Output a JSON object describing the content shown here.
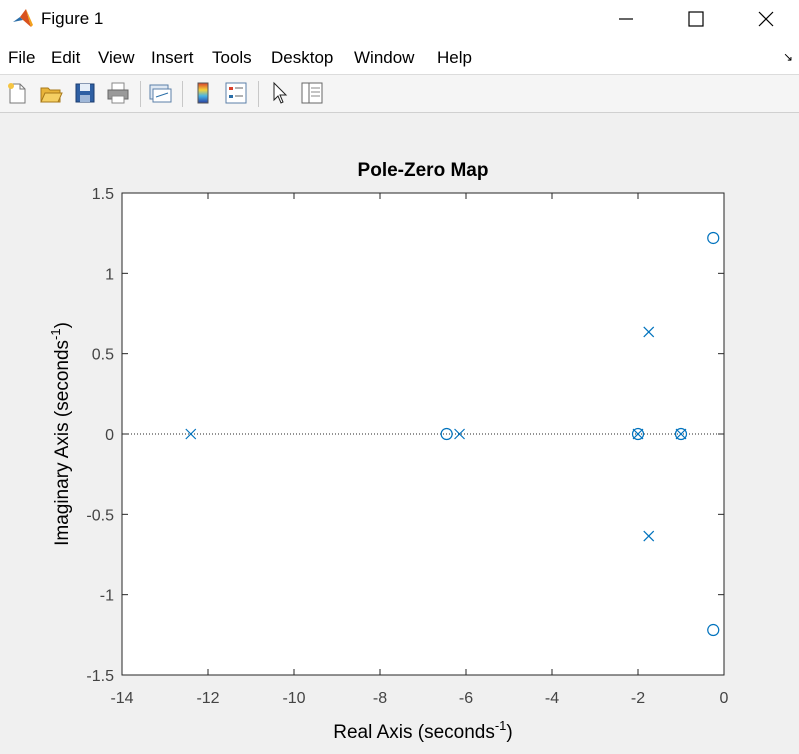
{
  "window": {
    "title": "Figure 1",
    "icon": "matlab-logo-icon",
    "controls": [
      "minimize-icon",
      "maximize-icon",
      "close-icon"
    ]
  },
  "menu": {
    "items": [
      "File",
      "Edit",
      "View",
      "Insert",
      "Tools",
      "Desktop",
      "Window",
      "Help"
    ],
    "dock_icon": "dock-arrow-icon"
  },
  "toolbar": {
    "buttons": [
      "new-figure-icon",
      "open-file-icon",
      "save-icon",
      "print-icon",
      "link-plot-icon",
      "insert-colorbar-icon",
      "insert-legend-icon",
      "edit-plot-pointer-icon",
      "property-inspector-icon"
    ]
  },
  "chart_data": {
    "type": "scatter",
    "title": "Pole-Zero Map",
    "xlabel": "Real Axis (seconds",
    "ylabel": "Imaginary Axis (seconds",
    "label_superscript": "-1",
    "label_suffix": ")",
    "xlim": [
      -14,
      0
    ],
    "ylim": [
      -1.5,
      1.5
    ],
    "xticks": [
      "-14",
      "-12",
      "-10",
      "-8",
      "-6",
      "-4",
      "-2",
      "0"
    ],
    "yticks": [
      "1.5",
      "1",
      "0.5",
      "0",
      "-0.5",
      "-1",
      "-1.5"
    ],
    "grid": false,
    "color": "#0072BD",
    "series": [
      {
        "name": "poles",
        "marker": "x",
        "points": [
          [
            -12.4,
            0
          ],
          [
            -6.15,
            0
          ],
          [
            -2.0,
            0
          ],
          [
            -1.0,
            0
          ],
          [
            -1.75,
            0.635
          ],
          [
            -1.75,
            -0.635
          ]
        ]
      },
      {
        "name": "zeros",
        "marker": "o",
        "points": [
          [
            -6.45,
            0
          ],
          [
            -2.0,
            0
          ],
          [
            -1.0,
            0
          ],
          [
            -0.25,
            1.22
          ],
          [
            -0.25,
            -1.22
          ]
        ]
      }
    ]
  }
}
